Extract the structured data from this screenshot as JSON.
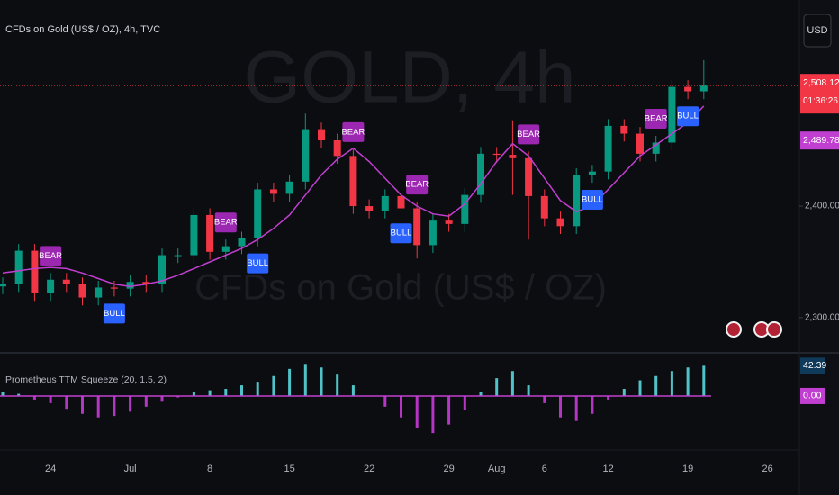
{
  "header": {
    "symbol": "CFDs on Gold (US$ / OZ), 4h, TVC",
    "currency": "USD"
  },
  "watermark": {
    "title": "GOLD, 4h",
    "subtitle": "CFDs on Gold (US$ / OZ)"
  },
  "chart_data": [
    {
      "type": "candlestick",
      "categories": [
        null,
        null,
        null,
        "24",
        null,
        null,
        null,
        null,
        "Jul",
        null,
        null,
        null,
        null,
        "8",
        null,
        null,
        null,
        null,
        "15",
        null,
        null,
        null,
        null,
        "22",
        null,
        null,
        null,
        null,
        "29",
        null,
        null,
        "Aug",
        null,
        null,
        "6",
        null,
        null,
        null,
        "12",
        null,
        null,
        null,
        null,
        "19",
        null,
        null,
        null,
        null,
        "26"
      ],
      "open": [
        2328,
        2330,
        2360,
        2322,
        2334,
        2330,
        2318,
        2327,
        2326,
        2332,
        2330,
        2356,
        2356,
        2392,
        2359,
        2364,
        2371,
        2415,
        2411,
        2422,
        2469,
        2459,
        2445,
        2400,
        2396,
        2409,
        2398,
        2365,
        2387,
        2384,
        2410,
        2447,
        2446,
        2443,
        2409,
        2389,
        2382,
        2428,
        2431,
        2472,
        2465,
        2447,
        2457,
        2507,
        2503,
        null,
        null,
        null,
        null
      ],
      "high": [
        2336,
        2366,
        2366,
        2340,
        2340,
        2336,
        2333,
        2333,
        2338,
        2338,
        2362,
        2362,
        2398,
        2398,
        2370,
        2377,
        2421,
        2421,
        2428,
        2483,
        2475,
        2465,
        2451,
        2406,
        2415,
        2415,
        2404,
        2393,
        2393,
        2416,
        2453,
        2453,
        2477,
        2449,
        2415,
        2395,
        2434,
        2437,
        2478,
        2478,
        2471,
        2463,
        2513,
        2513,
        2531,
        null,
        null,
        null,
        null
      ],
      "low": [
        2321,
        2323,
        2315,
        2315,
        2323,
        2311,
        2311,
        2319,
        2319,
        2323,
        2323,
        2349,
        2349,
        2352,
        2352,
        2357,
        2364,
        2404,
        2404,
        2415,
        2452,
        2438,
        2393,
        2389,
        2389,
        2391,
        2353,
        2358,
        2377,
        2377,
        2403,
        2439,
        2410,
        2370,
        2382,
        2375,
        2375,
        2421,
        2424,
        2458,
        2440,
        2440,
        2450,
        2496,
        2496,
        null,
        null,
        null,
        null
      ],
      "close": [
        2330,
        2360,
        2322,
        2334,
        2330,
        2318,
        2327,
        2326,
        2332,
        2330,
        2356,
        2356,
        2392,
        2359,
        2364,
        2371,
        2415,
        2411,
        2422,
        2469,
        2459,
        2445,
        2400,
        2396,
        2409,
        2398,
        2365,
        2387,
        2384,
        2410,
        2447,
        2446,
        2443,
        2409,
        2389,
        2382,
        2428,
        2431,
        2472,
        2465,
        2447,
        2457,
        2507,
        2503,
        2508.12,
        null,
        null,
        null,
        null
      ],
      "close_labels": [
        null,
        null,
        null,
        null,
        null,
        null,
        null,
        null,
        null,
        null,
        null,
        null,
        null,
        null,
        null,
        null,
        null,
        null,
        null,
        null,
        null,
        null,
        null,
        null,
        null,
        null,
        null,
        null,
        null,
        null,
        null,
        null,
        null,
        null,
        null,
        null,
        null,
        null,
        null,
        null,
        null,
        null,
        null,
        null,
        "2,508.12",
        null,
        null,
        null,
        null
      ],
      "countdown": "01:36:26",
      "up_color": "#089981",
      "down_color": "#f23645",
      "overlay": {
        "color": "#c13fd0",
        "values": [
          2340,
          2342,
          2344,
          2345,
          2344,
          2340,
          2335,
          2330,
          2328,
          2330,
          2333,
          2338,
          2344,
          2350,
          2356,
          2362,
          2370,
          2380,
          2392,
          2410,
          2428,
          2442,
          2452,
          2440,
          2425,
          2410,
          2400,
          2393,
          2391,
          2402,
          2420,
          2440,
          2456,
          2445,
          2425,
          2405,
          2395,
          2400,
          2415,
          2430,
          2445,
          2455,
          2465,
          2475,
          2489.78,
          null,
          null,
          null,
          null
        ],
        "value_labels": [
          null,
          null,
          null,
          null,
          null,
          null,
          null,
          null,
          null,
          null,
          null,
          null,
          null,
          null,
          null,
          null,
          null,
          null,
          null,
          null,
          null,
          null,
          null,
          null,
          null,
          null,
          null,
          null,
          null,
          null,
          null,
          null,
          null,
          null,
          null,
          null,
          null,
          null,
          null,
          null,
          null,
          null,
          null,
          null,
          "2,489.78",
          null,
          null,
          null,
          null
        ]
      },
      "signals": [
        {
          "label": "BEAR",
          "x": 3
        },
        {
          "label": "BULL",
          "x": 7
        },
        {
          "label": "BEAR",
          "x": 14
        },
        {
          "label": "BULL",
          "x": 16
        },
        {
          "label": "BEAR",
          "x": 22
        },
        {
          "label": "BULL",
          "x": 25
        },
        {
          "label": "BEAR",
          "x": 26
        },
        {
          "label": "BEAR",
          "x": 33
        },
        {
          "label": "BULL",
          "x": 37
        },
        {
          "label": "BEAR",
          "x": 41
        },
        {
          "label": "BULL",
          "x": 43
        }
      ],
      "bear_color": "#9c27b0",
      "bull_color": "#2962ff",
      "ylim": [
        2270,
        2585
      ],
      "yticks": [
        {
          "value": 2300,
          "label": "2,300.00"
        },
        {
          "value": 2400,
          "label": "2,400.00"
        }
      ]
    },
    {
      "type": "bar",
      "title": "Prometheus TTM Squeeze (20, 1.5, 2)",
      "values": [
        5,
        3,
        -5,
        -10,
        -18,
        -25,
        -30,
        -28,
        -22,
        -15,
        -8,
        -2,
        5,
        8,
        10,
        15,
        20,
        28,
        38,
        45,
        40,
        30,
        15,
        0,
        -15,
        -30,
        -45,
        -52,
        -40,
        -20,
        5,
        25,
        35,
        15,
        -10,
        -30,
        -35,
        -25,
        -5,
        10,
        22,
        28,
        35,
        40,
        42.39,
        null,
        null,
        null,
        null
      ],
      "value_labels": [
        null,
        null,
        null,
        null,
        null,
        null,
        null,
        null,
        null,
        null,
        null,
        null,
        null,
        null,
        null,
        null,
        null,
        null,
        null,
        null,
        null,
        null,
        null,
        null,
        null,
        null,
        null,
        null,
        null,
        null,
        null,
        null,
        null,
        null,
        null,
        null,
        null,
        null,
        null,
        null,
        null,
        null,
        null,
        null,
        "42.39",
        null,
        null,
        null,
        null
      ],
      "positive_color": "#4fc3c7",
      "negative_color": "#b535c4",
      "zero_color": "#c13fd0",
      "ylim": [
        -72,
        58
      ],
      "yticks": [
        {
          "value": 0,
          "label": "0.00"
        }
      ]
    }
  ]
}
